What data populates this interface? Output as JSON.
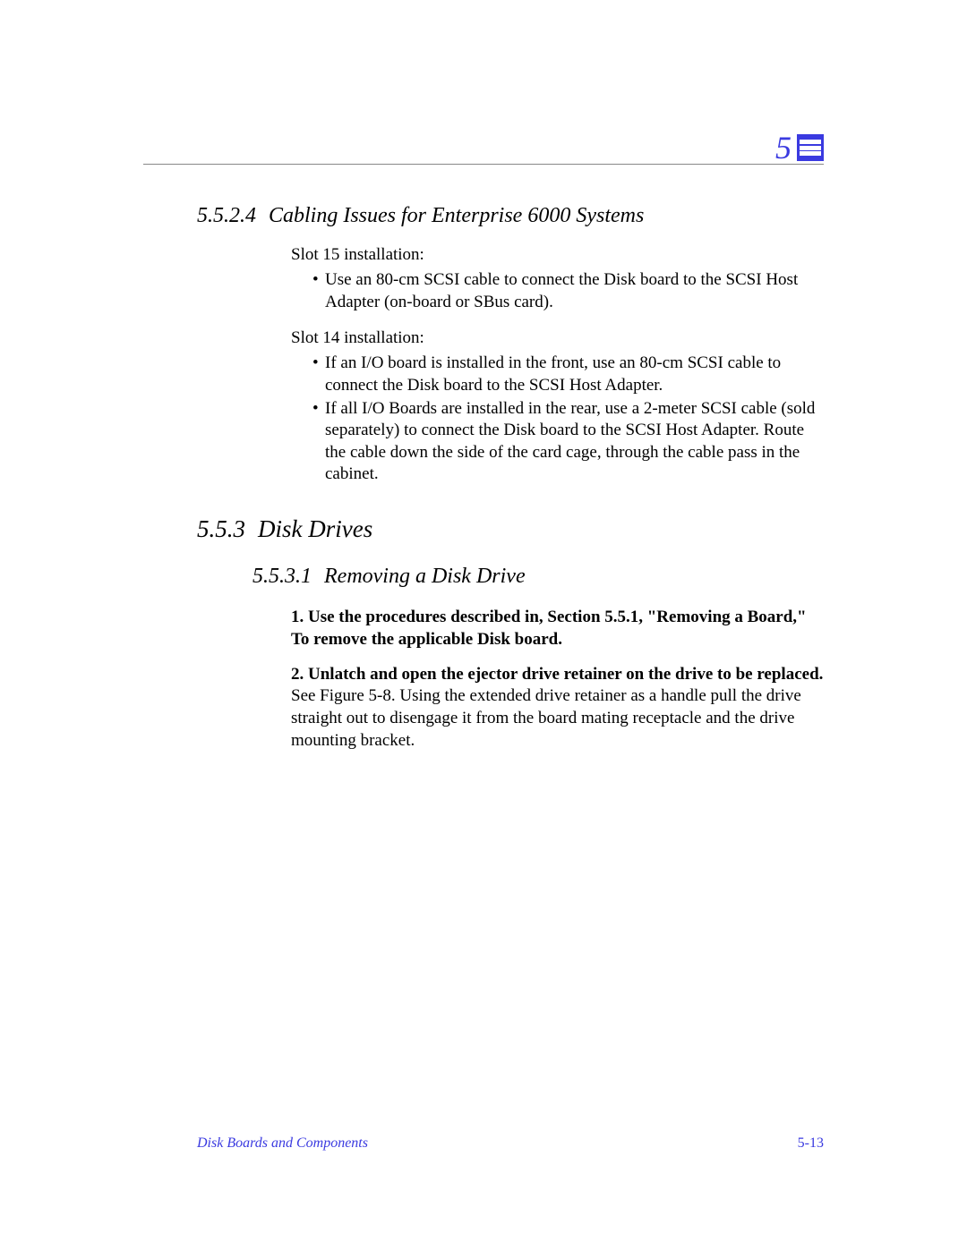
{
  "chapter_number": "5",
  "colors": {
    "accent": "#3a3ae0",
    "text": "#000000",
    "background": "#ffffff",
    "rule": "#888888"
  },
  "typography": {
    "base_family": "Palatino",
    "body_size_pt": 11,
    "h3_size_pt": 16,
    "h4_size_pt": 14
  },
  "sections": {
    "s55224": {
      "number": "5.5.2.4",
      "title": "Cabling Issues for Enterprise 6000 Systems",
      "slot15_label": "Slot 15 installation:",
      "slot15_bullets": [
        "Use an 80-cm SCSI cable to connect the Disk board to the SCSI Host Adapter (on-board or SBus card)."
      ],
      "slot14_label": "Slot 14 installation:",
      "slot14_bullets": [
        "If an I/O board is installed in the front, use an 80-cm SCSI cable to connect the Disk board to the SCSI Host Adapter.",
        "If all I/O Boards are installed in the rear, use a 2-meter SCSI cable (sold separately) to connect the Disk board to the SCSI Host Adapter. Route the cable down the side of the card cage, through the cable pass in the cabinet."
      ]
    },
    "s553": {
      "number": "5.5.3",
      "title": "Disk Drives"
    },
    "s5531": {
      "number": "5.5.3.1",
      "title": "Removing a Disk Drive",
      "steps": [
        {
          "lead": "1. Use the procedures described in, Section 5.5.1, \"Removing a Board,\" To remove the applicable Disk board.",
          "body": ""
        },
        {
          "lead": "2. Unlatch and open the ejector drive retainer on the drive to be replaced.",
          "body": "See Figure 5-8. Using the extended drive retainer as a handle pull the drive straight out to disengage it from the board mating receptacle and the drive mounting bracket."
        }
      ]
    }
  },
  "footer": {
    "title": "Disk Boards and Components",
    "page": "5-13"
  }
}
